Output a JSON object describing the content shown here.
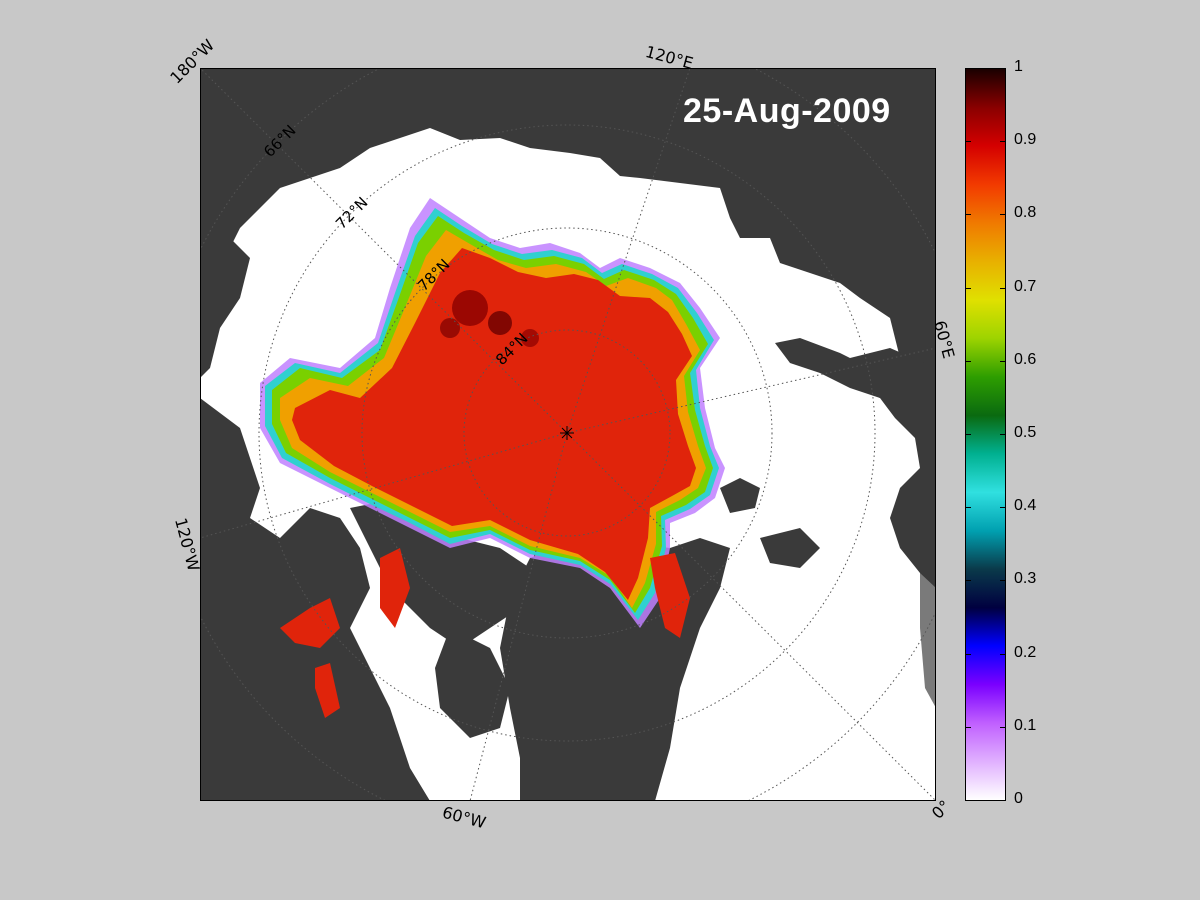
{
  "date": "25-Aug-2009",
  "map": {
    "type": "polar-stereographic sea ice concentration map",
    "region": "Arctic",
    "edge_labels": {
      "top_left": "180°W",
      "top": "120°E",
      "right": "60°E",
      "bottom_right": "0°",
      "bottom": "60°W",
      "left": "120°W"
    },
    "latitude_labels": [
      "66°N",
      "72°N",
      "78°N",
      "84°N"
    ],
    "colors": {
      "land": "#3a3a3a",
      "ocean": "#ffffff",
      "no_data": "#7a7a7a",
      "ice_high": "#e0240b",
      "background": "#c8c8c8"
    }
  },
  "colorbar": {
    "min": 0,
    "max": 1,
    "tick_labels": [
      "1",
      "0.9",
      "0.8",
      "0.7",
      "0.6",
      "0.5",
      "0.4",
      "0.3",
      "0.2",
      "0.1",
      "0"
    ],
    "gradient": [
      "#1a0000",
      "#8a0000",
      "#d40000",
      "#f23a00",
      "#f07a00",
      "#e8b000",
      "#e0e000",
      "#9ed400",
      "#2e9e00",
      "#0a6a10",
      "#00b090",
      "#30e0e0",
      "#00a0b0",
      "#0a3a4a",
      "#000040",
      "#0000ff",
      "#7a00ff",
      "#c060ff",
      "#e0b0ff",
      "#ffffff"
    ]
  }
}
